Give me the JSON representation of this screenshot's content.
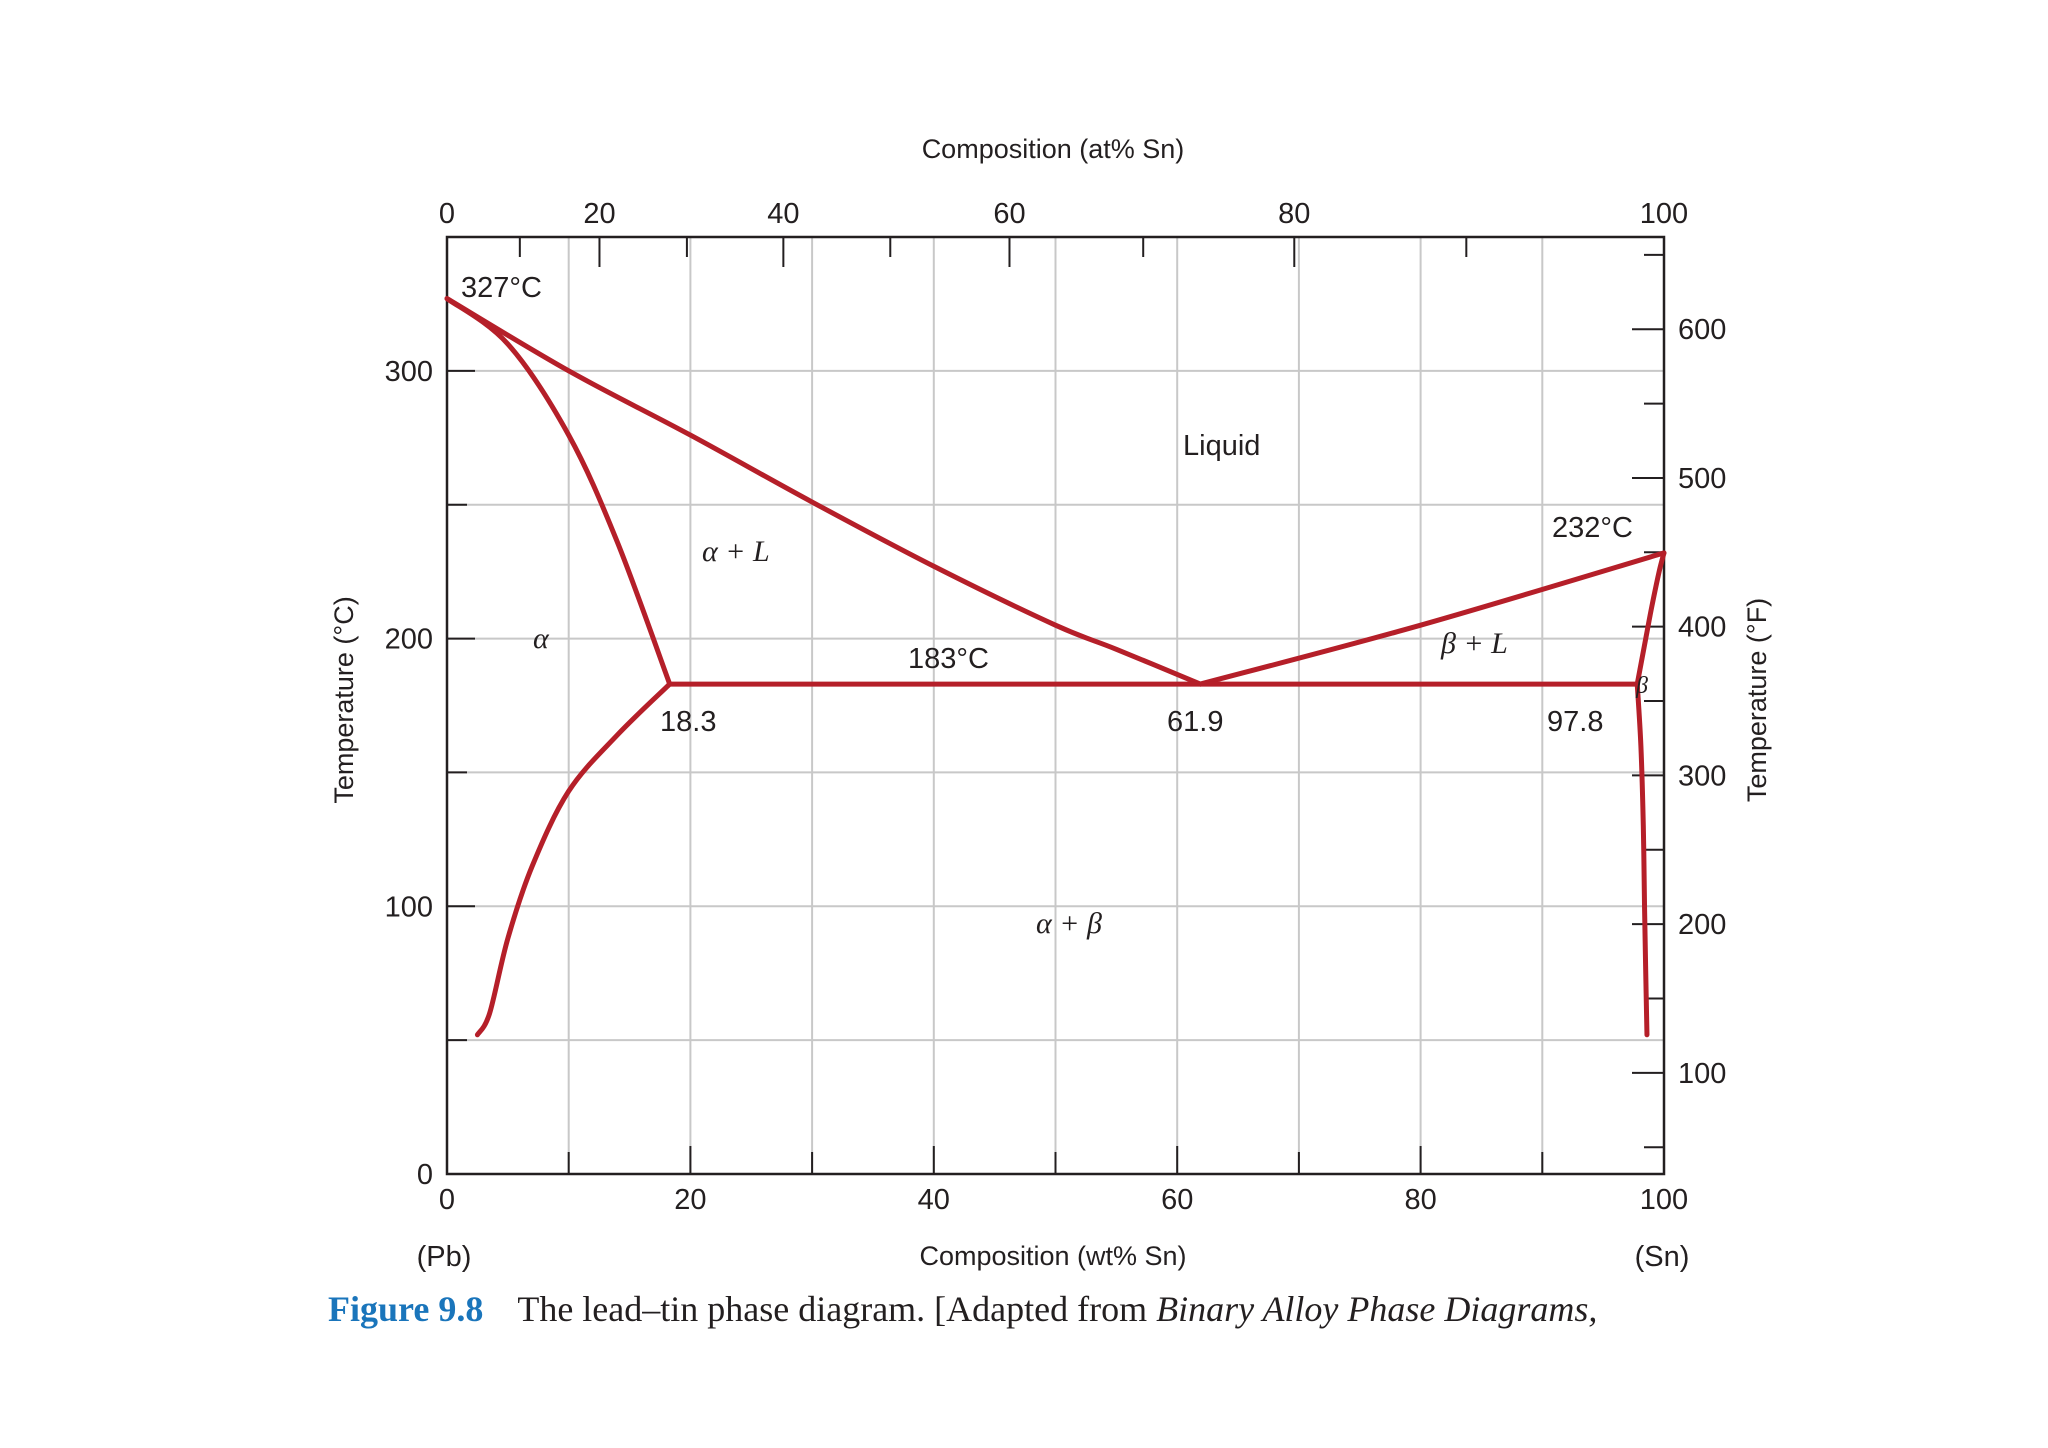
{
  "chart_data": {
    "type": "phase-diagram",
    "title": "The lead–tin phase diagram",
    "xlabel": "Composition (wt% Sn)",
    "xlabel_top": "Composition (at% Sn)",
    "ylabel": "Temperature (°C)",
    "ylabel_right": "Temperature (°F)",
    "xlim": [
      0,
      100
    ],
    "ylim": [
      0,
      350
    ],
    "grid": true,
    "x_ticks": [
      0,
      20,
      40,
      60,
      80,
      100
    ],
    "x_tick_labels": [
      "0",
      "20",
      "40",
      "60",
      "80",
      "100"
    ],
    "x_end_labels": [
      "(Pb)",
      "(Sn)"
    ],
    "top_ticks_at": [
      0,
      20,
      40,
      60,
      80,
      100
    ],
    "top_tick_labels": [
      "0",
      "20",
      "40",
      "60",
      "80",
      "100"
    ],
    "y_ticks": [
      0,
      100,
      200,
      300
    ],
    "y_tick_labels": [
      "0",
      "100",
      "200",
      "300"
    ],
    "right_ticks_f": [
      100,
      200,
      300,
      400,
      500,
      600
    ],
    "right_tick_labels": [
      "100",
      "200",
      "300",
      "400",
      "500",
      "600"
    ],
    "series": [
      {
        "name": "alpha liquidus",
        "points": [
          [
            0,
            327
          ],
          [
            10,
            300
          ],
          [
            20,
            276
          ],
          [
            30,
            251
          ],
          [
            40,
            227
          ],
          [
            50,
            205
          ],
          [
            55,
            196
          ],
          [
            61.9,
            183
          ]
        ]
      },
      {
        "name": "beta liquidus",
        "points": [
          [
            61.9,
            183
          ],
          [
            80,
            205
          ],
          [
            100,
            232
          ]
        ]
      },
      {
        "name": "alpha solidus",
        "points": [
          [
            0,
            327
          ],
          [
            5,
            310
          ],
          [
            10,
            276
          ],
          [
            14,
            236
          ],
          [
            18.3,
            183
          ]
        ]
      },
      {
        "name": "alpha solvus",
        "points": [
          [
            18.3,
            183
          ],
          [
            14,
            164
          ],
          [
            10,
            143
          ],
          [
            7,
            115
          ],
          [
            5,
            88
          ],
          [
            3.5,
            60
          ],
          [
            2.5,
            52
          ]
        ]
      },
      {
        "name": "beta solidus",
        "points": [
          [
            100,
            232
          ],
          [
            99.6,
            225
          ],
          [
            99,
            212
          ],
          [
            98.5,
            200
          ],
          [
            97.8,
            183
          ]
        ]
      },
      {
        "name": "beta solvus",
        "points": [
          [
            97.8,
            183
          ],
          [
            98.1,
            160
          ],
          [
            98.3,
            130
          ],
          [
            98.4,
            100
          ],
          [
            98.5,
            75
          ],
          [
            98.6,
            52
          ]
        ]
      },
      {
        "name": "eutectic isotherm",
        "points": [
          [
            18.3,
            183
          ],
          [
            97.8,
            183
          ]
        ]
      }
    ],
    "annotations": [
      {
        "text": "327°C",
        "x": 0,
        "y": 327
      },
      {
        "text": "232°C",
        "x": 100,
        "y": 232
      },
      {
        "text": "183°C",
        "x": 40,
        "y": 183
      },
      {
        "text": "18.3",
        "x": 18.3,
        "y": 183
      },
      {
        "text": "61.9",
        "x": 61.9,
        "y": 183
      },
      {
        "text": "97.8",
        "x": 97.8,
        "y": 183
      }
    ],
    "regions": [
      {
        "text": "Liquid",
        "x": 64,
        "y": 270
      },
      {
        "text": "α + L",
        "x": 24,
        "y": 230
      },
      {
        "text": "β + L",
        "x": 85,
        "y": 200
      },
      {
        "text": "α",
        "x": 8,
        "y": 200
      },
      {
        "text": "β",
        "x": 98.5,
        "y": 183
      },
      {
        "text": "α + β",
        "x": 52,
        "y": 95
      }
    ]
  },
  "caption": {
    "figure_number": "Figure 9.8",
    "text": "The lead–tin phase diagram. [Adapted from ",
    "italic": "Binary Alloy Phase Diagrams,"
  }
}
